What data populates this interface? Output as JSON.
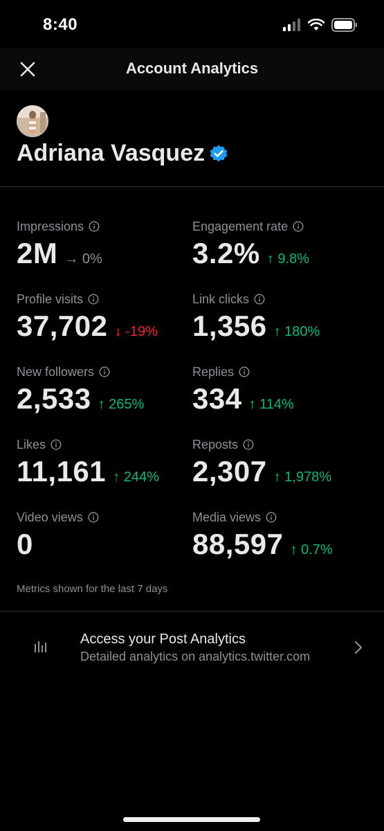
{
  "status_bar": {
    "time": "8:40",
    "icons": [
      "cellular-signal-icon",
      "wifi-icon",
      "battery-icon"
    ]
  },
  "header": {
    "title": "Account Analytics",
    "close_icon": "close-icon"
  },
  "profile": {
    "name": "Adriana Vasquez",
    "verified": true,
    "verified_color": "#1d9bf0"
  },
  "metrics": {
    "impressions": {
      "label": "Impressions",
      "value": "2M",
      "change": "0%",
      "direction": "flat"
    },
    "engagement_rate": {
      "label": "Engagement rate",
      "value": "3.2%",
      "change": "9.8%",
      "direction": "up"
    },
    "profile_visits": {
      "label": "Profile visits",
      "value": "37,702",
      "change": "-19%",
      "direction": "down"
    },
    "link_clicks": {
      "label": "Link clicks",
      "value": "1,356",
      "change": "180%",
      "direction": "up"
    },
    "new_followers": {
      "label": "New followers",
      "value": "2,533",
      "change": "265%",
      "direction": "up"
    },
    "replies": {
      "label": "Replies",
      "value": "334",
      "change": "114%",
      "direction": "up"
    },
    "likes": {
      "label": "Likes",
      "value": "11,161",
      "change": "244%",
      "direction": "up"
    },
    "reposts": {
      "label": "Reposts",
      "value": "2,307",
      "change": "1,978%",
      "direction": "up"
    },
    "video_views": {
      "label": "Video views",
      "value": "0",
      "change": "",
      "direction": "none"
    },
    "media_views": {
      "label": "Media views",
      "value": "88,597",
      "change": "0.7%",
      "direction": "up"
    }
  },
  "footnote": "Metrics shown for the last 7 days",
  "post_analytics": {
    "title": "Access your Post Analytics",
    "subtitle": "Detailed analytics on analytics.twitter.com",
    "icon": "bar-chart-icon"
  },
  "colors": {
    "up": "#00ba7c",
    "down": "#f4212e",
    "flat": "#8b9196",
    "background": "#000000"
  }
}
